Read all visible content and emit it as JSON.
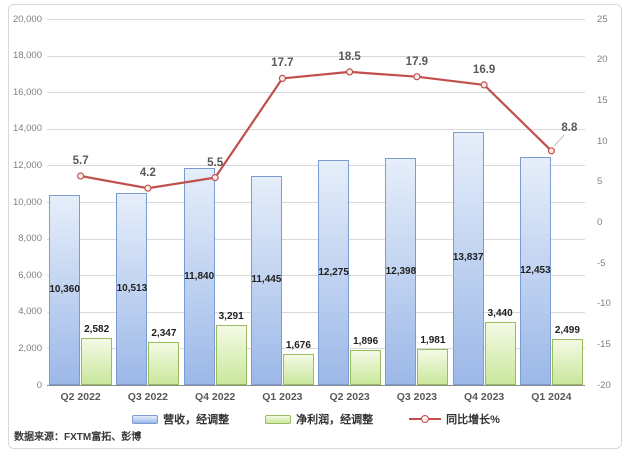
{
  "chart_data": {
    "type": "combo-bar-line",
    "categories": [
      "Q2 2022",
      "Q3 2022",
      "Q4 2022",
      "Q1 2023",
      "Q2 2023",
      "Q3 2023",
      "Q4 2023",
      "Q1 2024"
    ],
    "series": [
      {
        "name": "营收，经调整",
        "type": "bar",
        "axis": "left",
        "values": [
          10360,
          10513,
          11840,
          11445,
          12275,
          12398,
          13837,
          12453
        ]
      },
      {
        "name": "净利润，经调整",
        "type": "bar",
        "axis": "left",
        "values": [
          2582,
          2347,
          3291,
          1676,
          1896,
          1981,
          3440,
          2499
        ]
      },
      {
        "name": "同比增长%",
        "type": "line",
        "axis": "right",
        "values": [
          5.7,
          4.2,
          5.5,
          17.7,
          18.5,
          17.9,
          16.9,
          8.8
        ]
      }
    ],
    "left_axis": {
      "min": 0,
      "max": 20000,
      "step": 2000,
      "ticks": [
        "20,000",
        "18,000",
        "16,000",
        "14,000",
        "12,000",
        "10,000",
        "8,000",
        "6,000",
        "4,000",
        "2,000",
        "0"
      ]
    },
    "right_axis": {
      "min": -20,
      "max": 25,
      "step": 5,
      "ticks": [
        "25",
        "20",
        "15",
        "10",
        "5",
        "0",
        "-5",
        "-10",
        "-15",
        "-20"
      ]
    },
    "grid": true,
    "legend_position": "bottom",
    "title": ""
  },
  "legend": {
    "revenue": "营收，经调整",
    "profit": "净利润，经调整",
    "growth": "同比增长%"
  },
  "source_note": "数据来源：FXTM富拓、彭博",
  "colors": {
    "bar_revenue_top": "#e6eefa",
    "bar_revenue_bottom": "#9cb8e8",
    "bar_revenue_border": "#7a9cd0",
    "bar_profit_top": "#f4fae5",
    "bar_profit_bottom": "#c9e79c",
    "bar_profit_border": "#9cba5e",
    "growth_line": "#c0504d",
    "marker_fill": "#fbecea",
    "grid": "#d9d9d9",
    "axis_line": "#8c8c8c",
    "axis_text": "#808080",
    "category_text": "#595959",
    "value_text": "#1f1f1f",
    "line_label_text": "#595959",
    "leader_line": "#bfbfbf"
  }
}
